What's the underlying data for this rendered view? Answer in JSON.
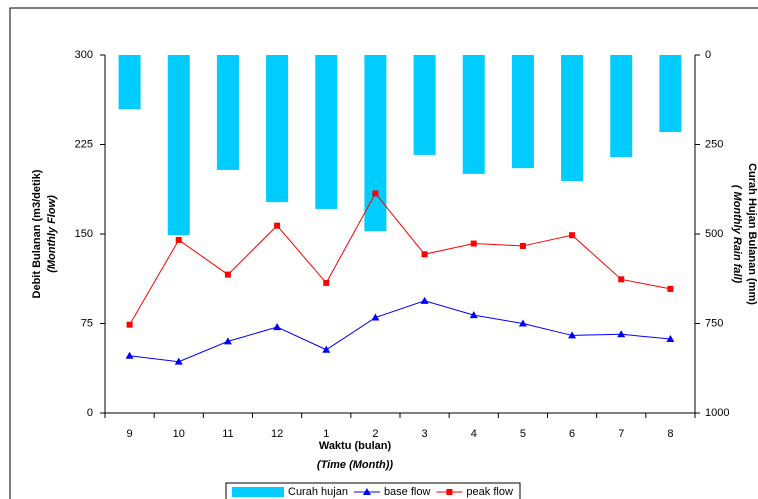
{
  "chart_data": {
    "type": "bar-line",
    "categories": [
      "9",
      "10",
      "11",
      "12",
      "1",
      "2",
      "3",
      "4",
      "5",
      "6",
      "7",
      "8"
    ],
    "series": [
      {
        "name": "Curah hujan",
        "type": "bar",
        "axis": "y2",
        "color": "#00ccff",
        "values": [
          151,
          503,
          321,
          411,
          430,
          492,
          279,
          332,
          316,
          352,
          285,
          215
        ]
      },
      {
        "name": "base flow",
        "type": "line",
        "marker": "triangle",
        "color": "#0000ff",
        "values": [
          48,
          43,
          60,
          72,
          53,
          80,
          94,
          82,
          75,
          65,
          66,
          62
        ]
      },
      {
        "name": "peak flow",
        "type": "line",
        "marker": "square",
        "color": "#ff0000",
        "values": [
          74,
          145,
          116,
          157,
          109,
          184,
          133,
          142,
          140,
          149,
          112,
          104
        ]
      }
    ],
    "ylim": [
      0,
      300
    ],
    "yticks": [
      0,
      75,
      150,
      225,
      300
    ],
    "y2lim": [
      0,
      1000
    ],
    "y2ticks": [
      0,
      250,
      500,
      750,
      1000
    ],
    "y2_reversed": true,
    "ylabel": [
      "Debit Bulanan (m3/detik)",
      "(Monthly Flow)"
    ],
    "y2label": [
      "Curah Hujan Bulanan (mm)",
      "( Monthly Rain fall)"
    ],
    "xlabel": [
      "Waktu (bulan)",
      "(Time (Month))"
    ]
  }
}
